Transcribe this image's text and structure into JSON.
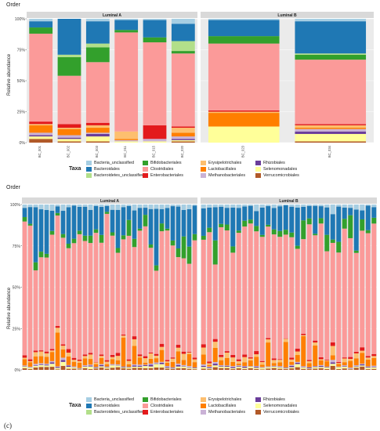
{
  "figure": {
    "caption": "(c)"
  },
  "chart_data": [
    {
      "type": "bar",
      "stacked": true,
      "title": "Order",
      "ylabel": "Relative abundance",
      "ylim": [
        0,
        1
      ],
      "ytick_labels": [
        "0%",
        "25%",
        "50%",
        "75%",
        "100%"
      ],
      "facets": [
        {
          "name": "Luminal A",
          "categories": [
            "BC_001",
            "BC_002",
            "BC_003",
            "BC_011",
            "BC_015",
            "BC_020"
          ]
        },
        {
          "name": "Luminal B",
          "categories": [
            "BC_023",
            "BC_034"
          ]
        }
      ],
      "series_order": [
        "Verrucomicrobiales",
        "Selenomonadales",
        "Rhizobiales",
        "Methanobacteriales",
        "Lactobacillales",
        "Erysipelotrichales",
        "Enterobacteriales",
        "Clostridiales",
        "Bifidobacteriales",
        "Bacteroidetes_unclassified",
        "Bacteroidales",
        "Bacteria_unclassified"
      ],
      "samples": {
        "BC_001": [
          0.03,
          0.02,
          0.01,
          0.02,
          0.06,
          0.01,
          0.02,
          0.71,
          0.05,
          0.0,
          0.05,
          0.02
        ],
        "BC_002": [
          0.01,
          0.02,
          0.01,
          0.02,
          0.05,
          0.01,
          0.03,
          0.39,
          0.15,
          0.02,
          0.29,
          0.0
        ],
        "BC_003": [
          0.01,
          0.04,
          0.02,
          0.01,
          0.04,
          0.02,
          0.02,
          0.49,
          0.12,
          0.03,
          0.18,
          0.02
        ],
        "BC_011": [
          0.0,
          0.01,
          0.0,
          0.01,
          0.01,
          0.06,
          0.0,
          0.8,
          0.02,
          0.0,
          0.08,
          0.01
        ],
        "BC_015": [
          0.0,
          0.01,
          0.0,
          0.02,
          0.0,
          0.0,
          0.11,
          0.67,
          0.04,
          0.0,
          0.14,
          0.01
        ],
        "BC_020": [
          0.01,
          0.01,
          0.01,
          0.02,
          0.03,
          0.04,
          0.01,
          0.59,
          0.02,
          0.08,
          0.14,
          0.04
        ],
        "BC_023": [
          0.0,
          0.13,
          0.0,
          0.0,
          0.11,
          0.01,
          0.01,
          0.54,
          0.06,
          0.0,
          0.13,
          0.01
        ],
        "BC_034": [
          0.01,
          0.06,
          0.02,
          0.02,
          0.01,
          0.02,
          0.01,
          0.52,
          0.04,
          0.01,
          0.26,
          0.02
        ]
      }
    },
    {
      "type": "bar",
      "stacked": true,
      "title": "Order",
      "ylabel": "Relative abundance",
      "ylim": [
        0,
        1
      ],
      "ytick_labels": [
        "0%",
        "25%",
        "50%",
        "75%",
        "100%"
      ],
      "facets": [
        {
          "name": "Luminal A",
          "n_samples": 32
        },
        {
          "name": "Luminal B",
          "n_samples": 30
        }
      ],
      "typical_composition": {
        "Bacteroidales": 0.13,
        "Bifidobacteriales": 0.03,
        "Clostridiales": 0.72,
        "Lactobacillales": 0.04,
        "Erysipelotrichales": 0.02,
        "Enterobacteriales": 0.01,
        "Selenomonadales": 0.01,
        "Bacteria_unclassified": 0.02,
        "Verrucomicrobiales": 0.01,
        "Methanobacteriales": 0.005,
        "Rhizobiales": 0.005
      }
    }
  ],
  "legend": {
    "title": "Taxa",
    "items": [
      {
        "label": "Bacteria_unclassified",
        "color": "#a6cee3"
      },
      {
        "label": "Bacteroidales",
        "color": "#1f78b4"
      },
      {
        "label": "Bacteroidetes_unclassified",
        "color": "#b2df8a"
      },
      {
        "label": "Bifidobacteriales",
        "color": "#33a02c"
      },
      {
        "label": "Clostridiales",
        "color": "#fb9a99"
      },
      {
        "label": "Enterobacteriales",
        "color": "#e31a1c"
      },
      {
        "label": "Erysipelotrichales",
        "color": "#fdbf6f"
      },
      {
        "label": "Lactobacillales",
        "color": "#ff7f00"
      },
      {
        "label": "Methanobacteriales",
        "color": "#cab2d6"
      },
      {
        "label": "Rhizobiales",
        "color": "#6a3d9a"
      },
      {
        "label": "Selenomonadales",
        "color": "#ffff99"
      },
      {
        "label": "Verrucomicrobiales",
        "color": "#b15928"
      }
    ]
  }
}
